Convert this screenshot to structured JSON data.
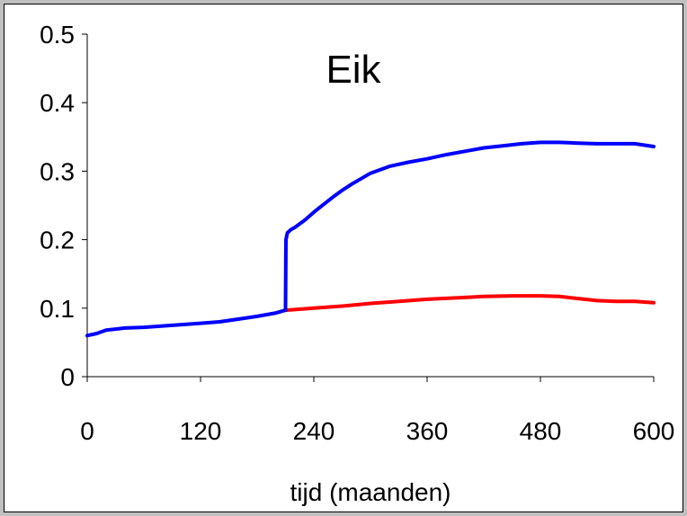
{
  "chart_data": {
    "type": "line",
    "title": "Eik",
    "xlabel": "tijd (maanden)",
    "ylabel": "",
    "xlim": [
      0,
      600
    ],
    "ylim": [
      0,
      0.5
    ],
    "x_ticks": [
      0,
      120,
      240,
      360,
      480,
      600
    ],
    "x_tick_labels": [
      "0",
      "120",
      "240",
      "360",
      "480",
      "600"
    ],
    "y_ticks": [
      0,
      0.1,
      0.2,
      0.3,
      0.4,
      0.5
    ],
    "y_tick_labels": [
      "0",
      "0.1",
      "0.2",
      "0.3",
      "0.4",
      "0.5"
    ],
    "grid": false,
    "legend": "none",
    "series": [
      {
        "color": "#ff0000",
        "x": [
          210,
          240,
          270,
          300,
          330,
          360,
          390,
          420,
          450,
          480,
          500,
          520,
          540,
          560,
          580,
          600
        ],
        "y": [
          0.097,
          0.1,
          0.103,
          0.107,
          0.11,
          0.113,
          0.115,
          0.117,
          0.118,
          0.118,
          0.117,
          0.114,
          0.111,
          0.11,
          0.11,
          0.108
        ]
      },
      {
        "color": "#0000ff",
        "x": [
          0,
          10,
          20,
          40,
          60,
          80,
          100,
          120,
          140,
          160,
          180,
          200,
          210,
          210.5,
          212,
          216,
          220,
          230,
          240,
          250,
          260,
          270,
          280,
          290,
          300,
          320,
          340,
          360,
          380,
          400,
          420,
          440,
          460,
          480,
          500,
          520,
          540,
          560,
          580,
          600
        ],
        "y": [
          0.06,
          0.063,
          0.068,
          0.071,
          0.072,
          0.074,
          0.076,
          0.078,
          0.08,
          0.084,
          0.088,
          0.093,
          0.097,
          0.2,
          0.21,
          0.215,
          0.218,
          0.228,
          0.24,
          0.251,
          0.262,
          0.272,
          0.281,
          0.289,
          0.297,
          0.307,
          0.313,
          0.318,
          0.324,
          0.329,
          0.334,
          0.337,
          0.34,
          0.342,
          0.342,
          0.341,
          0.34,
          0.34,
          0.34,
          0.336
        ]
      }
    ]
  }
}
